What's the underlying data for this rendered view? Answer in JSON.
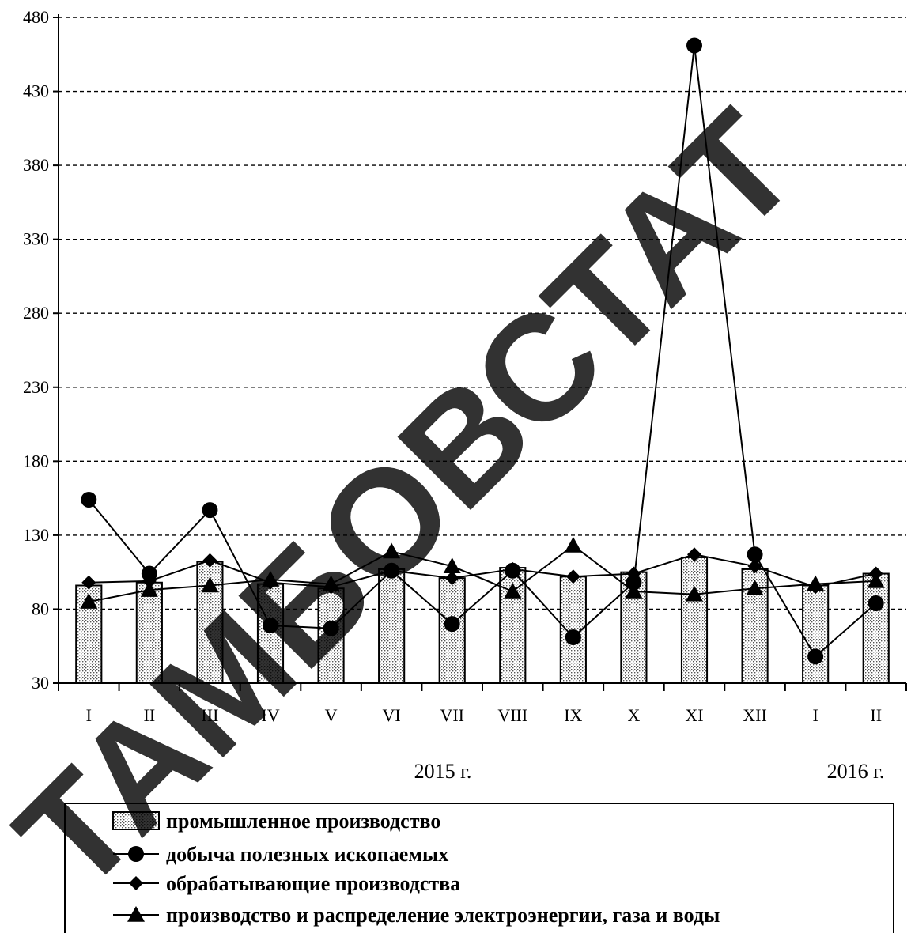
{
  "chart_data": {
    "type": "bar",
    "categories": [
      "I",
      "II",
      "III",
      "IV",
      "V",
      "VI",
      "VII",
      "VIII",
      "IX",
      "X",
      "XI",
      "XII",
      "I",
      "II"
    ],
    "year_labels": [
      "2015 г.",
      "2016 г."
    ],
    "ylim": [
      30,
      480
    ],
    "yticks": [
      30,
      80,
      130,
      180,
      230,
      280,
      330,
      380,
      430,
      480
    ],
    "grid": true,
    "legend_position": "bottom",
    "series": [
      {
        "name": "промышленное производство",
        "marker": "bar-dotted",
        "values": [
          96,
          98,
          112,
          97,
          94,
          107,
          101,
          108,
          102,
          105,
          115,
          107,
          96,
          104
        ]
      },
      {
        "name": "добыча полезных ископаемых",
        "marker": "circle",
        "values": [
          154,
          104,
          147,
          69,
          67,
          106,
          70,
          106,
          61,
          98,
          461,
          117,
          48,
          84
        ]
      },
      {
        "name": "обрабатывающие производства",
        "marker": "diamond",
        "values": [
          98,
          99,
          113,
          98,
          95,
          106,
          101,
          107,
          102,
          104,
          117,
          109,
          95,
          104
        ]
      },
      {
        "name": "производство и распределение электроэнергии, газа и воды",
        "marker": "triangle",
        "values": [
          85,
          93,
          96,
          100,
          97,
          119,
          109,
          92,
          123,
          92,
          90,
          94,
          97,
          99
        ]
      }
    ]
  },
  "watermark": "ТАМБОВСТАТ",
  "colors": {
    "ink": "#000000",
    "grid": "#808080",
    "bar_fill": "#d8d8d8",
    "watermark_opacity": "0.8"
  }
}
